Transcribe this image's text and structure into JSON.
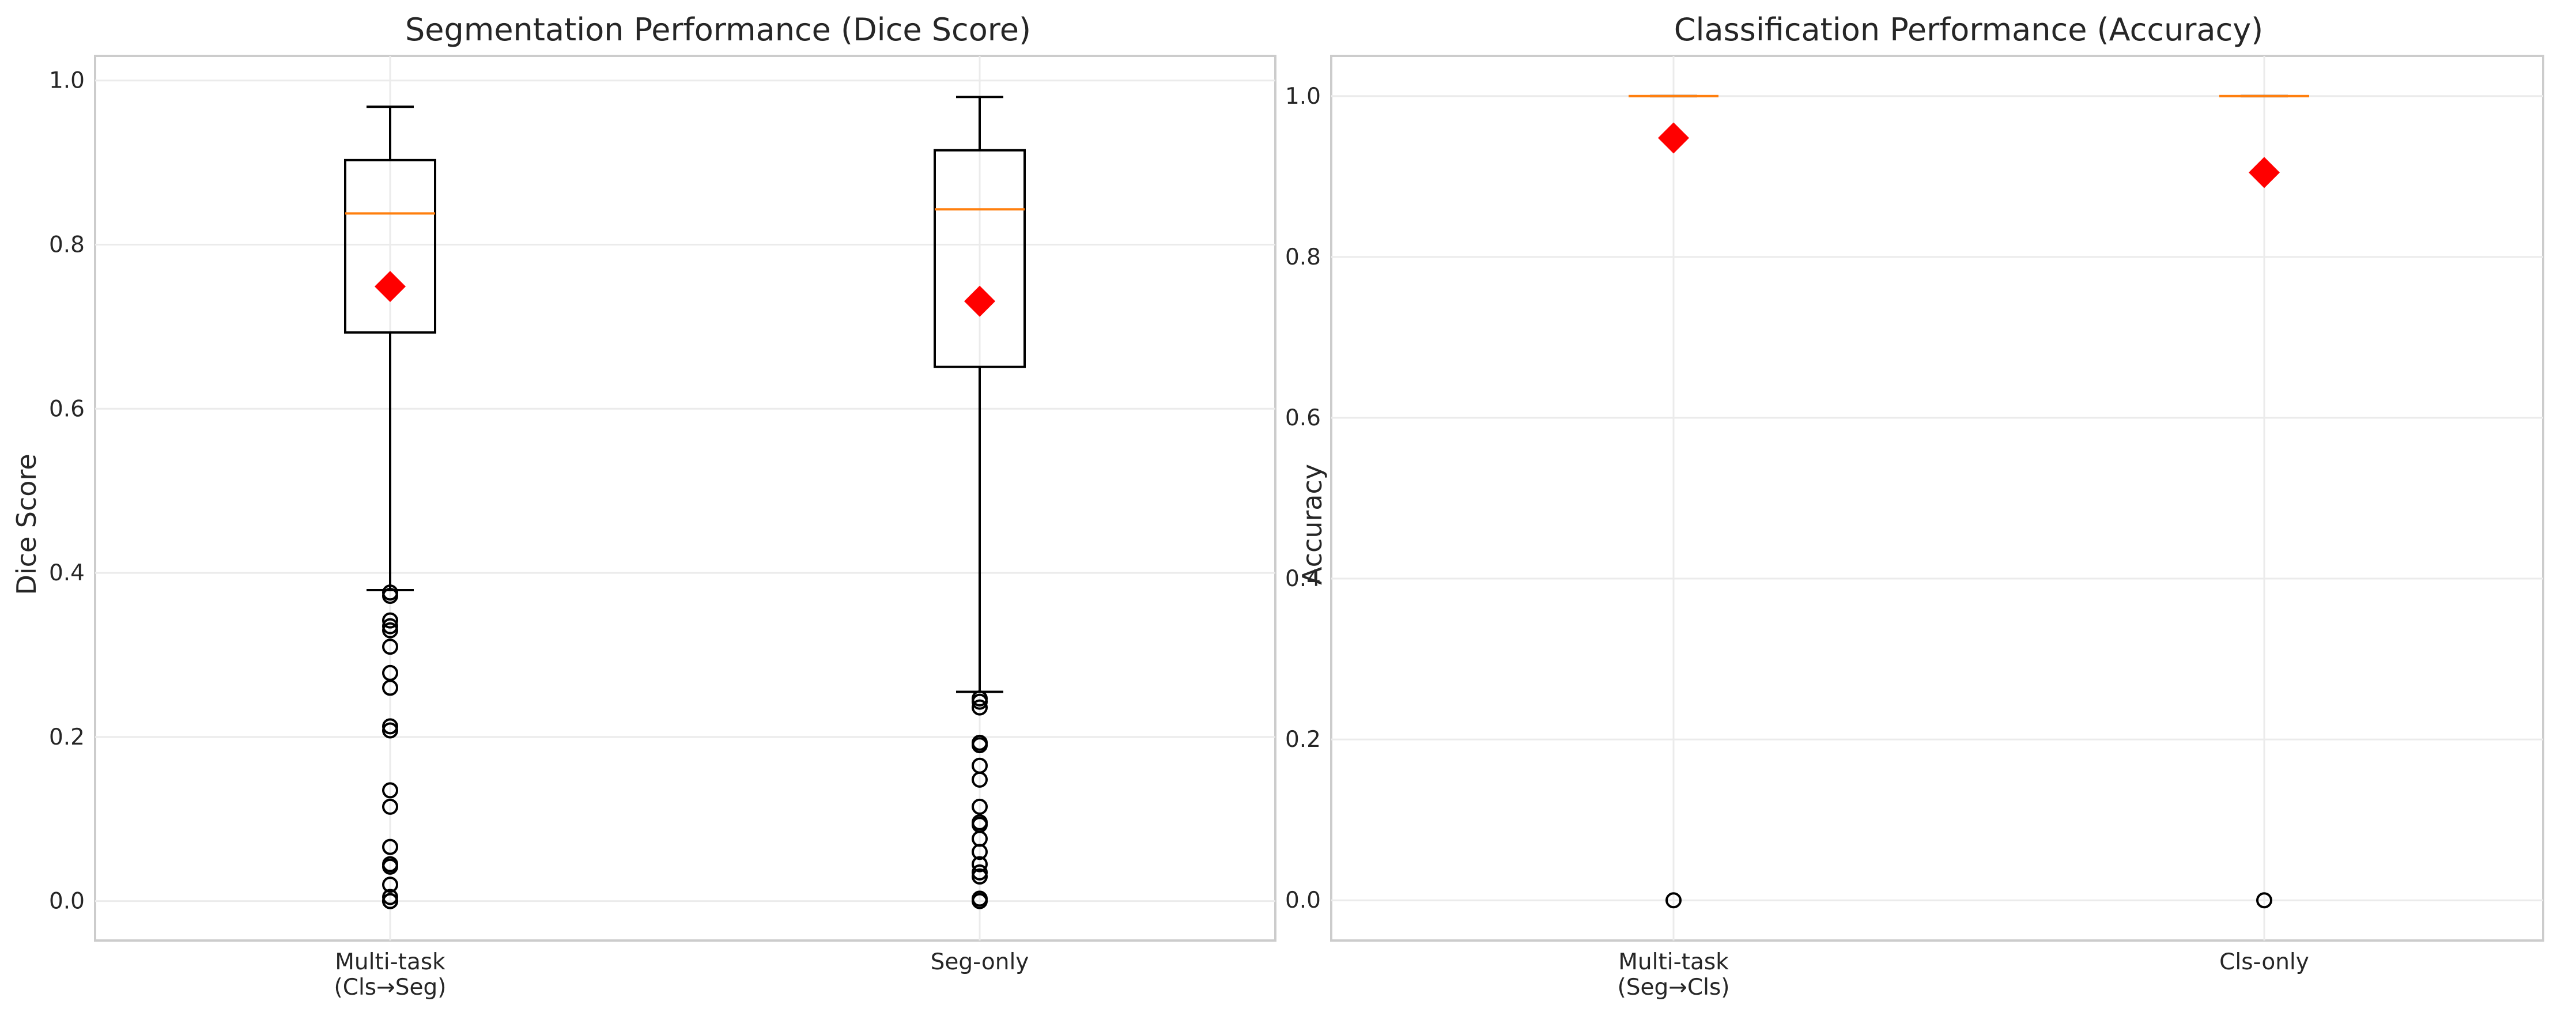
{
  "chart_data": [
    {
      "type": "box",
      "title": "Segmentation Performance (Dice Score)",
      "xlabel": "",
      "ylabel": "Dice Score",
      "ylim": [
        -0.048,
        1.03
      ],
      "yticks": [
        0.0,
        0.2,
        0.4,
        0.6,
        0.8,
        1.0
      ],
      "ytick_labels": [
        "0.0",
        "0.2",
        "0.4",
        "0.6",
        "0.8",
        "1.0"
      ],
      "grid": true,
      "categories": [
        [
          "Multi-task",
          "(Cls→Seg)"
        ],
        [
          "Seg-only"
        ]
      ],
      "boxes": [
        {
          "whislo": 0.379,
          "q1": 0.693,
          "median": 0.838,
          "q3": 0.903,
          "whishi": 0.968,
          "mean": 0.749,
          "fliers": [
            0.376,
            0.372,
            0.342,
            0.335,
            0.33,
            0.31,
            0.278,
            0.26,
            0.213,
            0.208,
            0.135,
            0.115,
            0.066,
            0.045,
            0.042,
            0.02,
            0.005,
            0.0,
            0.0
          ]
        },
        {
          "whislo": 0.255,
          "q1": 0.651,
          "median": 0.843,
          "q3": 0.915,
          "whishi": 0.98,
          "mean": 0.731,
          "fliers": [
            0.247,
            0.243,
            0.236,
            0.193,
            0.19,
            0.165,
            0.148,
            0.115,
            0.096,
            0.093,
            0.076,
            0.06,
            0.045,
            0.035,
            0.03,
            0.003,
            0.0
          ]
        }
      ],
      "colors": {
        "median": "#ff7f0e",
        "mean_marker": "#ff0000",
        "box": "#000000"
      }
    },
    {
      "type": "box",
      "title": "Classification Performance (Accuracy)",
      "xlabel": "",
      "ylabel": "Accuracy",
      "ylim": [
        -0.05,
        1.05
      ],
      "yticks": [
        0.0,
        0.2,
        0.4,
        0.6,
        0.8,
        1.0
      ],
      "ytick_labels": [
        "0.0",
        "0.2",
        "0.4",
        "0.6",
        "0.8",
        "1.0"
      ],
      "grid": true,
      "categories": [
        [
          "Multi-task",
          "(Seg→Cls)"
        ],
        [
          "Cls-only"
        ]
      ],
      "boxes": [
        {
          "whislo": 1.0,
          "q1": 1.0,
          "median": 1.0,
          "q3": 1.0,
          "whishi": 1.0,
          "mean": 0.948,
          "fliers": [
            0.0
          ]
        },
        {
          "whislo": 1.0,
          "q1": 1.0,
          "median": 1.0,
          "q3": 1.0,
          "whishi": 1.0,
          "mean": 0.905,
          "fliers": [
            0.0
          ]
        }
      ],
      "colors": {
        "median": "#ff7f0e",
        "mean_marker": "#ff0000",
        "box": "#000000"
      }
    }
  ]
}
